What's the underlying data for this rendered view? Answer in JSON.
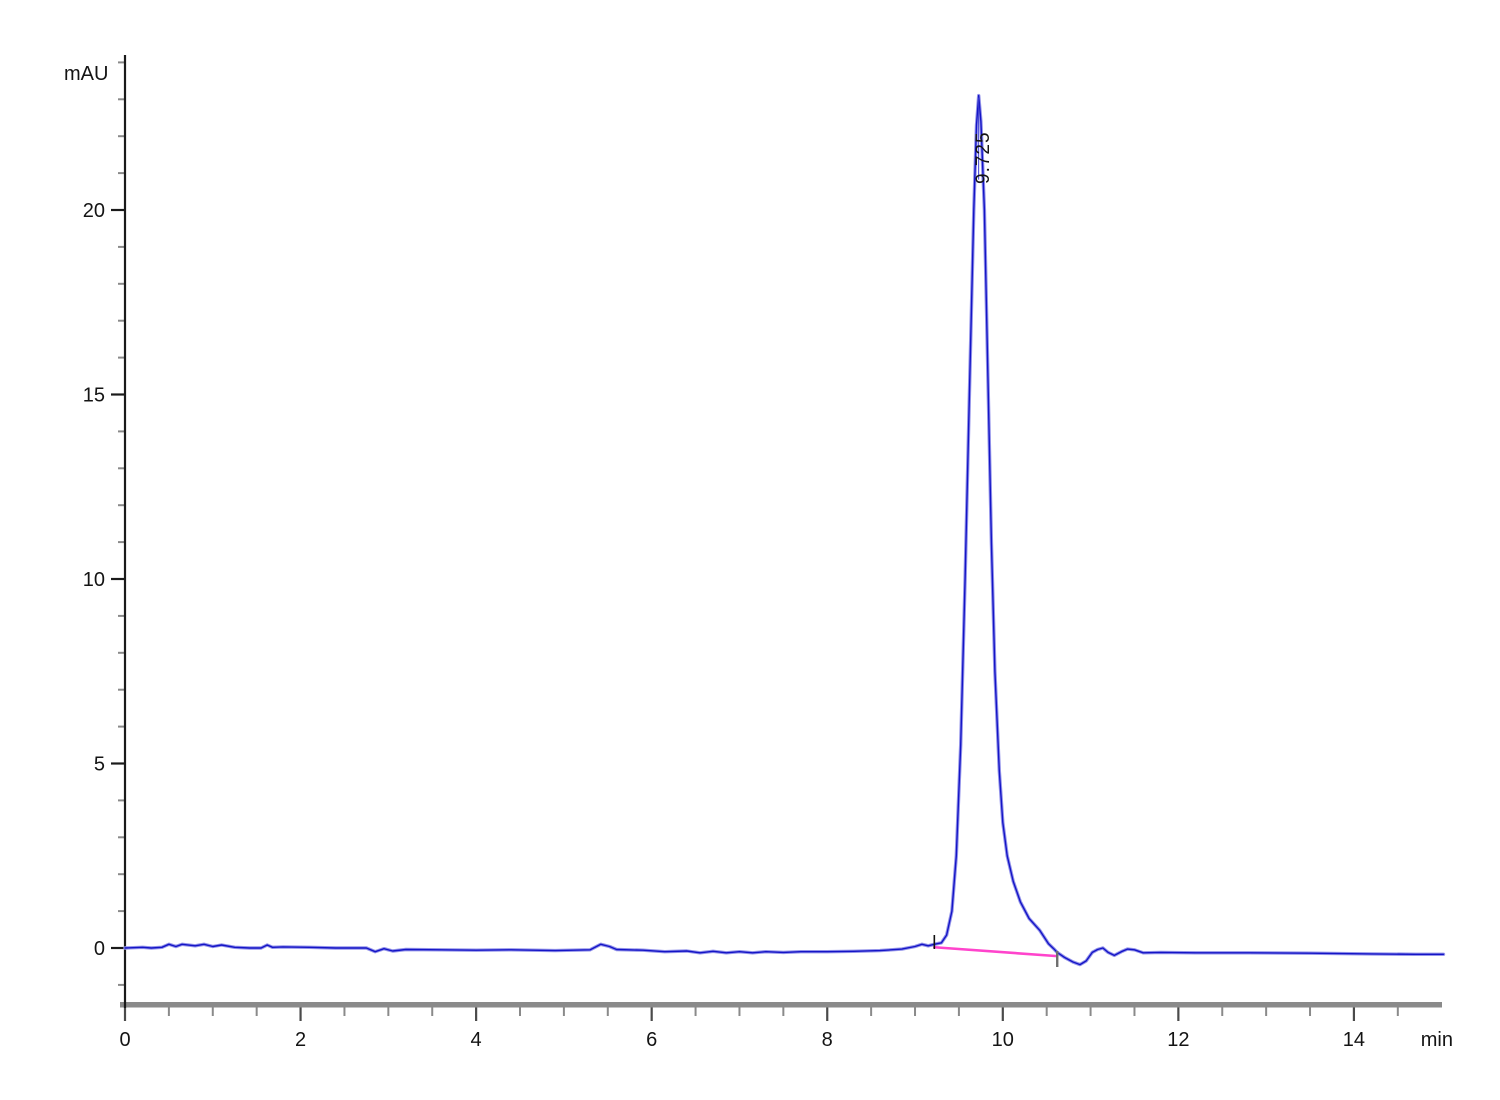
{
  "chart_data": {
    "type": "line",
    "title": "",
    "ylabel": "mAU",
    "xlabel": "min",
    "x_range": [
      0,
      15.02
    ],
    "y_axis_top_mAU": 24.2,
    "x_ticks_major": [
      0,
      2,
      4,
      6,
      8,
      10,
      12,
      14
    ],
    "x_minor_step": 0.5,
    "y_ticks_major": [
      0,
      5,
      10,
      15,
      20
    ],
    "y_minor_range": [
      -1,
      24
    ],
    "y_minor_step": 1,
    "grid": "off",
    "legend": "none",
    "peak": {
      "label": "9.725",
      "retention_time_min": 9.725,
      "apex_mAU": 23.1,
      "integration_start_min": 9.22,
      "integration_end_min": 10.62
    },
    "baseline_segment": {
      "comment": "pink integration baseline",
      "x": [
        9.22,
        10.62
      ],
      "y": [
        0.02,
        -0.22
      ]
    },
    "series": [
      {
        "name": "detector-signal",
        "points": [
          [
            0,
            0
          ],
          [
            0.2,
            0.02
          ],
          [
            0.3,
            0
          ],
          [
            0.42,
            0.02
          ],
          [
            0.5,
            0.1
          ],
          [
            0.58,
            0.04
          ],
          [
            0.65,
            0.1
          ],
          [
            0.8,
            0.06
          ],
          [
            0.9,
            0.1
          ],
          [
            1.0,
            0.04
          ],
          [
            1.1,
            0.08
          ],
          [
            1.25,
            0.02
          ],
          [
            1.42,
            0
          ],
          [
            1.55,
            0
          ],
          [
            1.62,
            0.08
          ],
          [
            1.68,
            0.02
          ],
          [
            1.8,
            0.03
          ],
          [
            2.1,
            0.02
          ],
          [
            2.4,
            0
          ],
          [
            2.75,
            0
          ],
          [
            2.85,
            -0.1
          ],
          [
            2.95,
            -0.02
          ],
          [
            3.05,
            -0.08
          ],
          [
            3.2,
            -0.04
          ],
          [
            3.6,
            -0.05
          ],
          [
            4.0,
            -0.06
          ],
          [
            4.4,
            -0.05
          ],
          [
            4.9,
            -0.07
          ],
          [
            5.3,
            -0.05
          ],
          [
            5.42,
            0.1
          ],
          [
            5.52,
            0.04
          ],
          [
            5.6,
            -0.04
          ],
          [
            5.9,
            -0.06
          ],
          [
            6.15,
            -0.1
          ],
          [
            6.4,
            -0.08
          ],
          [
            6.55,
            -0.13
          ],
          [
            6.7,
            -0.09
          ],
          [
            6.85,
            -0.13
          ],
          [
            7.0,
            -0.1
          ],
          [
            7.15,
            -0.13
          ],
          [
            7.3,
            -0.1
          ],
          [
            7.5,
            -0.12
          ],
          [
            7.7,
            -0.1
          ],
          [
            8.0,
            -0.1
          ],
          [
            8.3,
            -0.09
          ],
          [
            8.6,
            -0.07
          ],
          [
            8.85,
            -0.03
          ],
          [
            9.0,
            0.04
          ],
          [
            9.08,
            0.1
          ],
          [
            9.15,
            0.06
          ],
          [
            9.22,
            0.1
          ],
          [
            9.3,
            0.14
          ],
          [
            9.36,
            0.35
          ],
          [
            9.42,
            1.0
          ],
          [
            9.47,
            2.5
          ],
          [
            9.52,
            5.5
          ],
          [
            9.57,
            10
          ],
          [
            9.62,
            15
          ],
          [
            9.67,
            20
          ],
          [
            9.7,
            22.3
          ],
          [
            9.725,
            23.1
          ],
          [
            9.75,
            22.4
          ],
          [
            9.79,
            20
          ],
          [
            9.83,
            15.5
          ],
          [
            9.87,
            11
          ],
          [
            9.91,
            7.5
          ],
          [
            9.96,
            4.8
          ],
          [
            10.0,
            3.4
          ],
          [
            10.05,
            2.5
          ],
          [
            10.12,
            1.8
          ],
          [
            10.2,
            1.25
          ],
          [
            10.3,
            0.8
          ],
          [
            10.42,
            0.48
          ],
          [
            10.52,
            0.12
          ],
          [
            10.58,
            -0.02
          ],
          [
            10.62,
            -0.12
          ],
          [
            10.7,
            -0.25
          ],
          [
            10.8,
            -0.38
          ],
          [
            10.88,
            -0.45
          ],
          [
            10.95,
            -0.35
          ],
          [
            11.02,
            -0.12
          ],
          [
            11.08,
            -0.04
          ],
          [
            11.14,
            0.0
          ],
          [
            11.2,
            -0.12
          ],
          [
            11.27,
            -0.2
          ],
          [
            11.35,
            -0.1
          ],
          [
            11.42,
            -0.03
          ],
          [
            11.5,
            -0.05
          ],
          [
            11.6,
            -0.13
          ],
          [
            11.8,
            -0.12
          ],
          [
            12.2,
            -0.13
          ],
          [
            12.8,
            -0.13
          ],
          [
            13.5,
            -0.14
          ],
          [
            14.2,
            -0.16
          ],
          [
            14.7,
            -0.17
          ],
          [
            15.02,
            -0.17
          ]
        ]
      }
    ],
    "colors": {
      "trace_core": "#1414c6",
      "trace_halo": "#9393ea",
      "baseline_pink": "#ff44cc",
      "axis_bar_gray": "#8a8a8a",
      "axis_line_black": "#1a1a1a",
      "minor_tick_gray": "#8a8a8a",
      "major_tick_dark": "#4a4a4a",
      "integration_start_tick": "#111111",
      "integration_end_tick": "#6e6e6e",
      "background": "#ffffff"
    }
  }
}
